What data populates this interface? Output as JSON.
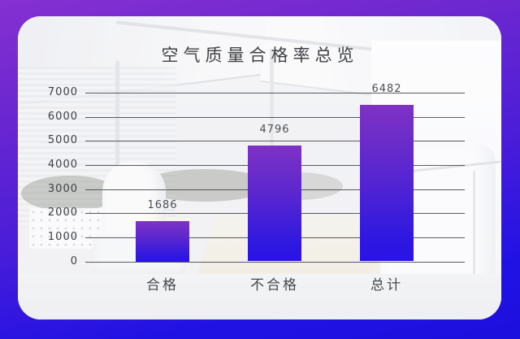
{
  "frame": {
    "gradient_top_color": "#8530d2",
    "gradient_bottom_color": "#1c10de",
    "photo_description": "washed-out white office interior"
  },
  "chart_data": {
    "type": "bar",
    "title": "空气质量合格率总览",
    "categories": [
      "合格",
      "不合格",
      "总计"
    ],
    "values": [
      1686,
      4796,
      6482
    ],
    "value_labels": [
      "1686",
      "4796",
      "6482"
    ],
    "xlabel": "",
    "ylabel": "",
    "ylim": [
      0,
      7000
    ],
    "yticks": [
      0,
      1000,
      2000,
      3000,
      4000,
      5000,
      6000,
      7000
    ],
    "grid": true,
    "legend": false,
    "bar_gradient_top": "#7e32c4",
    "bar_gradient_bottom": "#2a13e6",
    "gridline_color": "#34373c",
    "text_color": "#3f4144"
  }
}
